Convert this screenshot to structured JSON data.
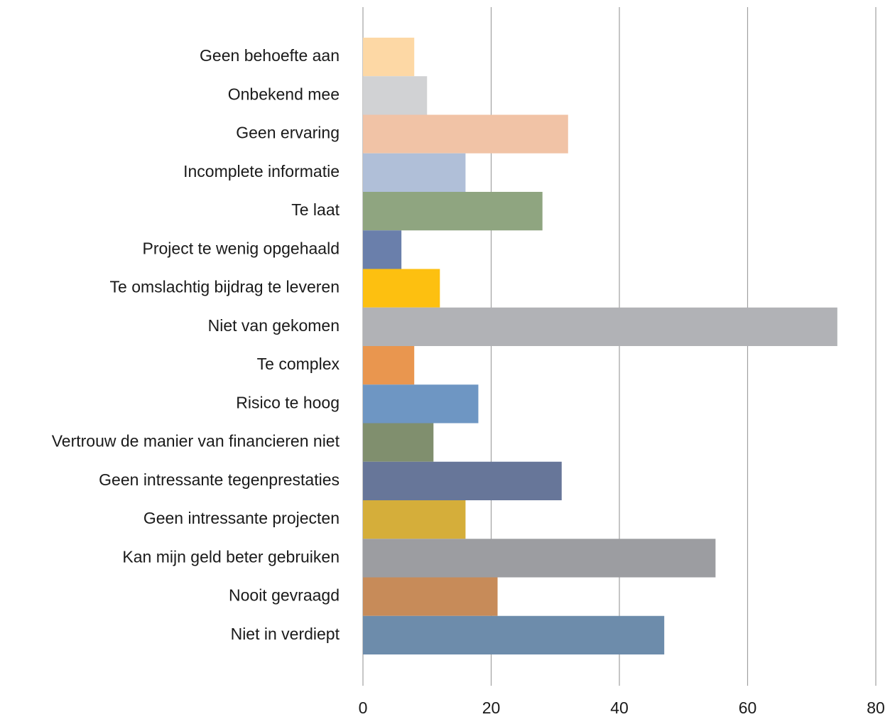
{
  "chart_data": {
    "type": "bar",
    "orientation": "horizontal",
    "categories": [
      "Geen behoefte aan",
      "Onbekend mee",
      "Geen ervaring",
      "Incomplete informatie",
      "Te laat",
      "Project te wenig opgehaald",
      "Te omslachtig bijdrag te leveren",
      "Niet van gekomen",
      "Te complex",
      "Risico te hoog",
      "Vertrouw de manier van financieren niet",
      "Geen intressante tegenprestaties",
      "Geen intressante projecten",
      "Kan mijn geld beter gebruiken",
      "Nooit gevraagd",
      "Niet in verdiept"
    ],
    "values": [
      8,
      10,
      32,
      16,
      28,
      6,
      12,
      74,
      8,
      18,
      11,
      31,
      16,
      55,
      21,
      47
    ],
    "colors": [
      "#fdd8a5",
      "#d1d2d4",
      "#f1c3a6",
      "#b0bfd8",
      "#8fa580",
      "#6a7fab",
      "#fdc010",
      "#b1b2b6",
      "#e9964f",
      "#6e96c3",
      "#808f6e",
      "#677699",
      "#d5ae3a",
      "#9c9da1",
      "#c78b59",
      "#6d8cab"
    ],
    "xlim": [
      0,
      80
    ],
    "xticks": [
      0,
      20,
      40,
      60,
      80
    ],
    "grid": true
  }
}
